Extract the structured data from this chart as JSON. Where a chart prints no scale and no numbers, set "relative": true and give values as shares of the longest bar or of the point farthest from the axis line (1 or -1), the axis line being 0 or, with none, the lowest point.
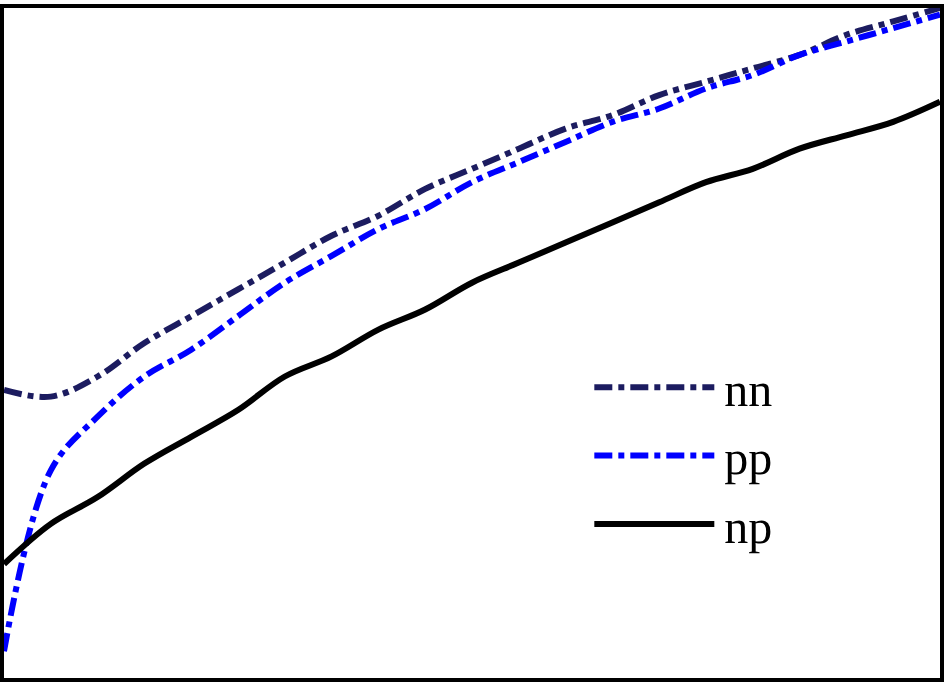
{
  "chart_data": {
    "type": "line",
    "relative": true,
    "legend": "right",
    "categories": [
      null,
      null,
      null,
      null,
      null,
      null,
      null,
      null,
      null,
      null,
      null,
      null,
      null,
      null,
      null,
      null,
      null,
      null,
      null,
      null,
      null
    ],
    "series": [
      {
        "name": "nn",
        "color": "#1c1c60",
        "line_style": "dashed",
        "values": [
          0.43,
          0.42,
          0.45,
          0.5,
          0.54,
          0.58,
          0.62,
          0.66,
          0.69,
          0.73,
          0.76,
          0.79,
          0.82,
          0.84,
          0.87,
          0.89,
          0.91,
          0.93,
          0.96,
          0.98,
          1
        ]
      },
      {
        "name": "pp",
        "color": "#0000ff",
        "line_style": "dashed",
        "values": [
          0.04,
          0.31,
          0.39,
          0.45,
          0.49,
          0.54,
          0.59,
          0.63,
          0.67,
          0.7,
          0.74,
          0.77,
          0.8,
          0.83,
          0.85,
          0.88,
          0.9,
          0.93,
          0.95,
          0.97,
          0.99
        ]
      },
      {
        "name": "np",
        "color": "#000000",
        "line_style": "solid",
        "values": [
          0.17,
          0.23,
          0.27,
          0.32,
          0.36,
          0.4,
          0.45,
          0.48,
          0.52,
          0.55,
          0.59,
          0.62,
          0.65,
          0.68,
          0.71,
          0.74,
          0.76,
          0.79,
          0.81,
          0.83,
          0.86
        ]
      }
    ]
  }
}
